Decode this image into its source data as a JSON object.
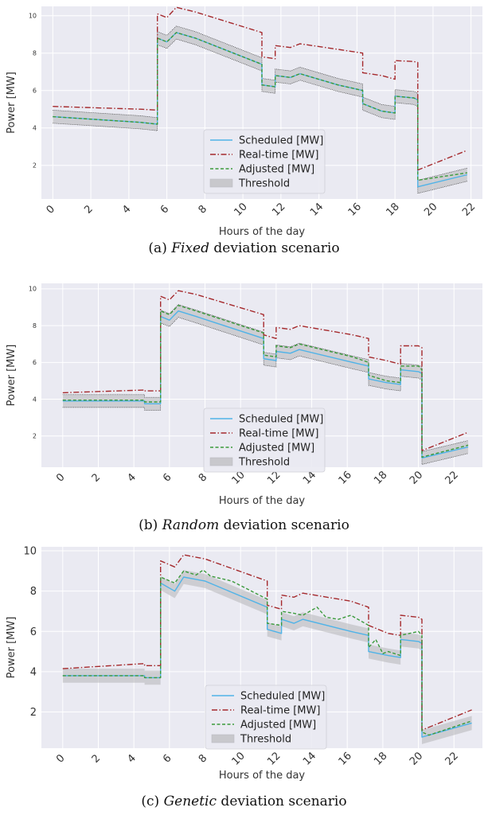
{
  "chart_data": [
    {
      "type": "line",
      "caption": {
        "prefix": "(a) ",
        "italic": "Fixed",
        "suffix": " deviation scenario"
      },
      "xlabel": "Hours of the day",
      "ylabel": "Power [MW]",
      "xticks": [
        0,
        2,
        4,
        6,
        8,
        10,
        12,
        14,
        16,
        18,
        20,
        22
      ],
      "yticks": [
        2,
        4,
        6,
        8,
        10
      ],
      "xlim": [
        -0.6,
        22.6
      ],
      "ylim": [
        0.2,
        10.5
      ],
      "legend_position": "lower-center",
      "legend": [
        "Scheduled [MW]",
        "Real-time [MW]",
        "Adjusted [MW]",
        "Threshold"
      ],
      "threshold_halfwidth": 0.35,
      "series": [
        {
          "name": "Scheduled [MW]",
          "color": "#4fb3e8",
          "style": "solid",
          "x": [
            0,
            4.6,
            4.6,
            5.5,
            5.5,
            6,
            6.5,
            7.5,
            11,
            11,
            11.7,
            11.7,
            12.5,
            13,
            15,
            16.3,
            16.3,
            17.3,
            18,
            18,
            19,
            19.2,
            19.2,
            21.8
          ],
          "y": [
            4.6,
            4.3,
            4.3,
            4.2,
            8.8,
            8.6,
            9.1,
            8.8,
            7.4,
            6.3,
            6.2,
            6.8,
            6.7,
            6.9,
            6.3,
            6.0,
            5.3,
            4.9,
            4.8,
            5.7,
            5.6,
            5.5,
            0.85,
            1.5
          ]
        },
        {
          "name": "Real-time [MW]",
          "color": "#a5292c",
          "style": "dashdot",
          "x": [
            0,
            4.6,
            4.6,
            5.5,
            5.5,
            6,
            6.5,
            7.5,
            11,
            11,
            11.7,
            11.7,
            12.5,
            13,
            15,
            16.3,
            16.3,
            17.3,
            18,
            18,
            19,
            19.2,
            19.2,
            21.8
          ],
          "y": [
            5.15,
            5.0,
            5.0,
            4.95,
            10.1,
            9.9,
            10.45,
            10.2,
            9.1,
            7.8,
            7.7,
            8.4,
            8.3,
            8.5,
            8.2,
            8.0,
            6.95,
            6.8,
            6.6,
            7.6,
            7.55,
            7.5,
            1.75,
            2.8
          ]
        },
        {
          "name": "Adjusted [MW]",
          "color": "#3a9a3a",
          "style": "dashed",
          "x": [
            0,
            4.6,
            4.6,
            5.5,
            5.5,
            6,
            6.5,
            7.5,
            11,
            11,
            11.7,
            11.7,
            12.5,
            13,
            15,
            16.3,
            16.3,
            17.3,
            18,
            18,
            19,
            19.2,
            19.2,
            21.8
          ],
          "y": [
            4.6,
            4.3,
            4.3,
            4.2,
            8.8,
            8.6,
            9.1,
            8.8,
            7.4,
            6.3,
            6.2,
            6.8,
            6.7,
            6.9,
            6.3,
            6.0,
            5.3,
            4.9,
            4.8,
            5.7,
            5.6,
            5.5,
            1.2,
            1.6
          ]
        }
      ]
    },
    {
      "type": "line",
      "caption": {
        "prefix": "(b) ",
        "italic": "Random",
        "suffix": " deviation scenario"
      },
      "xlabel": "Hours of the day",
      "ylabel": "Power [MW]",
      "xticks": [
        0,
        2,
        4,
        6,
        8,
        10,
        12,
        14,
        16,
        18,
        20,
        22
      ],
      "yticks": [
        2,
        4,
        6,
        8,
        10
      ],
      "xlim": [
        -1.2,
        23.6
      ],
      "ylim": [
        0.3,
        10.3
      ],
      "legend_position": "lower-center",
      "legend": [
        "Scheduled [MW]",
        "Real-time [MW]",
        "Adjusted [MW]",
        "Threshold"
      ],
      "threshold_halfwidth": 0.35,
      "series": [
        {
          "name": "Scheduled [MW]",
          "color": "#4fb3e8",
          "style": "solid",
          "x": [
            0,
            4.6,
            4.6,
            5.5,
            5.5,
            6,
            6.5,
            7.5,
            11.3,
            11.3,
            12,
            12,
            12.8,
            13.3,
            16.3,
            17.2,
            17.2,
            18.2,
            19,
            19,
            20,
            20.2,
            20.2,
            22.8
          ],
          "y": [
            3.9,
            3.9,
            3.75,
            3.75,
            8.5,
            8.3,
            8.8,
            8.5,
            7.3,
            6.2,
            6.1,
            6.6,
            6.5,
            6.7,
            6.0,
            5.8,
            5.1,
            4.9,
            4.8,
            5.6,
            5.5,
            5.4,
            0.8,
            1.4
          ]
        },
        {
          "name": "Real-time [MW]",
          "color": "#a5292c",
          "style": "dashdot",
          "x": [
            0,
            4.6,
            4.6,
            5.5,
            5.5,
            6,
            6.5,
            7.5,
            11.3,
            11.3,
            12,
            12,
            12.8,
            13.3,
            16.3,
            17.2,
            17.2,
            18.2,
            19,
            19,
            20,
            20.2,
            20.2,
            22.8
          ],
          "y": [
            4.35,
            4.5,
            4.45,
            4.45,
            9.6,
            9.4,
            9.9,
            9.7,
            8.6,
            7.5,
            7.3,
            7.9,
            7.8,
            8.0,
            7.5,
            7.3,
            6.3,
            6.1,
            5.9,
            6.9,
            6.9,
            6.8,
            1.2,
            2.2
          ]
        },
        {
          "name": "Adjusted [MW]",
          "color": "#3a9a3a",
          "style": "dashed",
          "x": [
            0,
            4.6,
            4.6,
            5.5,
            5.5,
            6,
            6.5,
            7.5,
            11.3,
            11.3,
            12,
            12,
            12.8,
            13.3,
            16.3,
            17.2,
            17.2,
            18.2,
            19,
            19,
            20,
            20.2,
            20.2,
            22.8
          ],
          "y": [
            3.95,
            3.95,
            3.85,
            3.85,
            8.8,
            8.6,
            9.1,
            8.8,
            7.6,
            6.4,
            6.3,
            6.9,
            6.8,
            7.0,
            6.3,
            6.0,
            5.3,
            5.0,
            4.9,
            5.8,
            5.8,
            5.6,
            0.85,
            1.5
          ]
        }
      ]
    },
    {
      "type": "line",
      "caption": {
        "prefix": "(c) ",
        "italic": "Genetic",
        "suffix": " deviation scenario"
      },
      "xlabel": "Hours of the day",
      "ylabel": "Power [MW]",
      "xticks": [
        0,
        2,
        4,
        6,
        8,
        10,
        12,
        14,
        16,
        18,
        20,
        22
      ],
      "yticks": [
        2,
        4,
        6,
        8,
        10
      ],
      "xlim": [
        -1.2,
        23.6
      ],
      "ylim": [
        0.2,
        10.2
      ],
      "legend_position": "lower-center",
      "legend": [
        "Scheduled [MW]",
        "Real-time [MW]",
        "Adjusted [MW]",
        "Threshold"
      ],
      "threshold_halfwidth": 0.35,
      "series": [
        {
          "name": "Scheduled [MW]",
          "color": "#4fb3e8",
          "style": "solid",
          "x": [
            0,
            4.6,
            4.6,
            5.5,
            5.5,
            6.3,
            6.8,
            8,
            11.5,
            11.5,
            12.3,
            12.3,
            13,
            13.5,
            16.2,
            17.2,
            17.2,
            18.3,
            19,
            19,
            20,
            20.2,
            20.2,
            23
          ],
          "y": [
            3.8,
            3.8,
            3.7,
            3.7,
            8.4,
            8.0,
            8.7,
            8.5,
            7.2,
            6.1,
            5.9,
            6.6,
            6.4,
            6.6,
            6.0,
            5.8,
            5.0,
            4.8,
            4.7,
            5.6,
            5.5,
            5.4,
            0.75,
            1.45
          ]
        },
        {
          "name": "Real-time [MW]",
          "color": "#a5292c",
          "style": "dashdot",
          "x": [
            0,
            4.6,
            4.6,
            5.5,
            5.5,
            6.3,
            6.8,
            8,
            11.5,
            11.5,
            12.3,
            12.3,
            13,
            13.5,
            16.2,
            17.2,
            17.2,
            18.3,
            19,
            19,
            20,
            20.2,
            20.2,
            23
          ],
          "y": [
            4.15,
            4.4,
            4.3,
            4.3,
            9.5,
            9.2,
            9.8,
            9.6,
            8.5,
            7.3,
            7.1,
            7.8,
            7.7,
            7.9,
            7.5,
            7.2,
            6.3,
            5.9,
            5.8,
            6.8,
            6.7,
            6.6,
            1.1,
            2.1
          ]
        },
        {
          "name": "Adjusted [MW]",
          "color": "#3a9a3a",
          "style": "dashed",
          "x": [
            0,
            4.6,
            4.6,
            5.5,
            5.5,
            6.3,
            6.8,
            7.5,
            7.9,
            8.3,
            9.5,
            11.5,
            11.5,
            12.3,
            12.3,
            13,
            13.5,
            14.3,
            14.8,
            15.5,
            16.2,
            17.2,
            17.2,
            17.6,
            18.0,
            18.3,
            19,
            19,
            20,
            20.2,
            20.2,
            20.6,
            23
          ],
          "y": [
            3.8,
            3.8,
            3.7,
            3.7,
            8.7,
            8.4,
            9.0,
            8.8,
            9.05,
            8.75,
            8.5,
            7.6,
            6.4,
            6.3,
            7.0,
            6.9,
            6.8,
            7.2,
            6.7,
            6.6,
            6.8,
            6.3,
            5.2,
            5.6,
            4.9,
            5.0,
            4.8,
            5.8,
            6.0,
            5.8,
            1.0,
            0.85,
            1.55
          ]
        }
      ]
    }
  ]
}
